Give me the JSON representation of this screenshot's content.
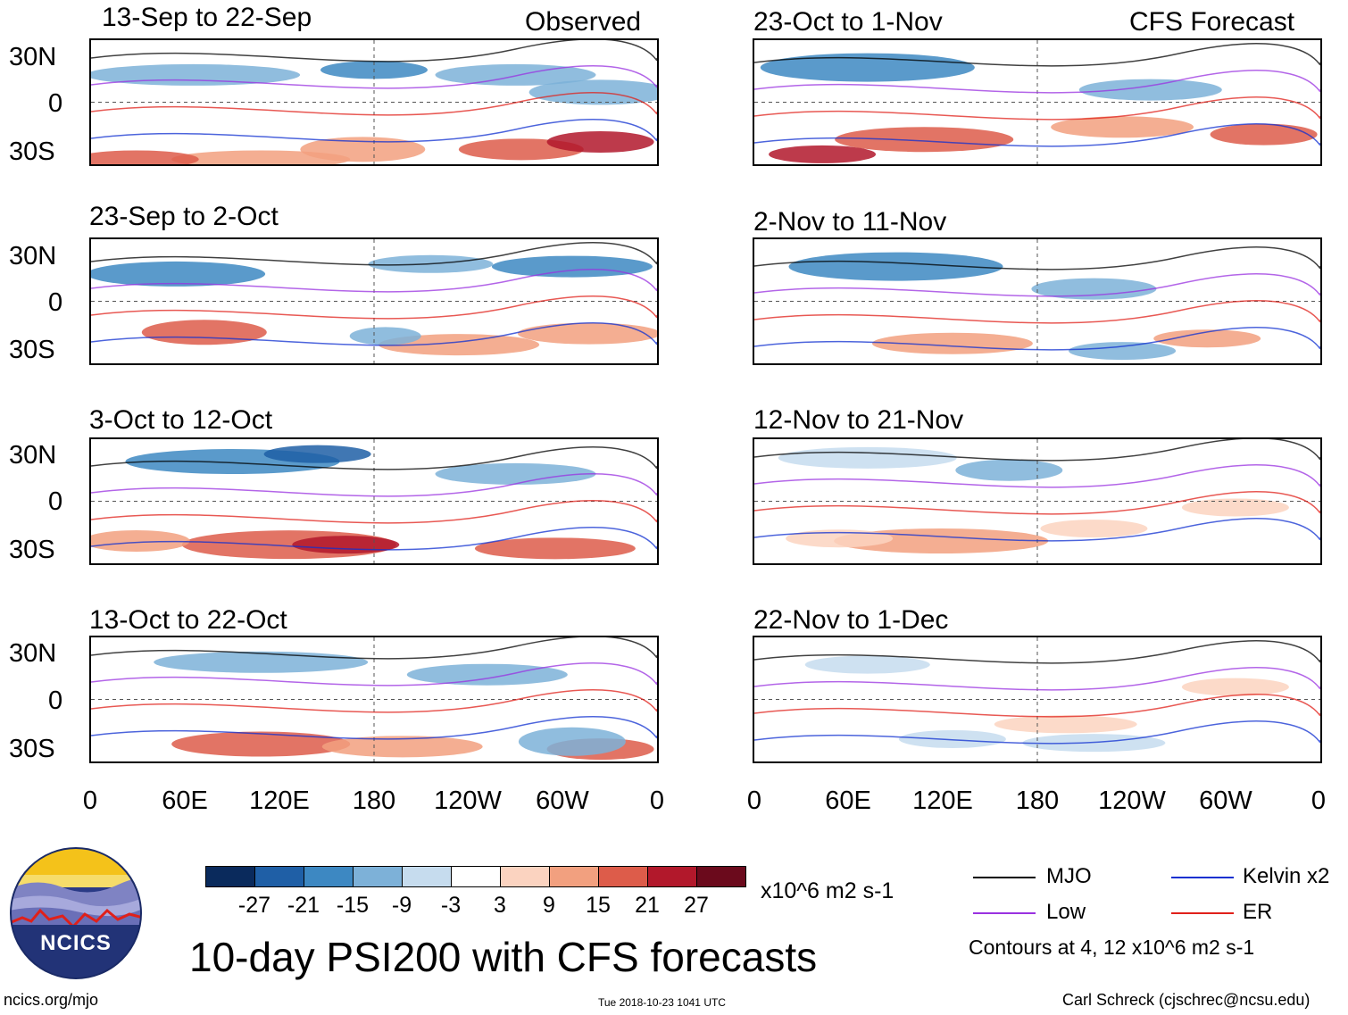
{
  "header": {
    "observed_label": "Observed",
    "forecast_label": "CFS Forecast"
  },
  "panels": [
    {
      "title": "13-Sep to 22-Sep"
    },
    {
      "title": "23-Sep to 2-Oct"
    },
    {
      "title": "3-Oct to 12-Oct"
    },
    {
      "title": "13-Oct to 22-Oct"
    },
    {
      "title": "23-Oct to 1-Nov"
    },
    {
      "title": "2-Nov to 11-Nov"
    },
    {
      "title": "12-Nov to 21-Nov"
    },
    {
      "title": "22-Nov to 1-Dec"
    }
  ],
  "lat_labels": [
    "30N",
    "0",
    "30S"
  ],
  "lon_labels": [
    "0",
    "60E",
    "120E",
    "180",
    "120W",
    "60W",
    "0"
  ],
  "colorbar": {
    "colors": [
      "#0a2a5c",
      "#1f5fa6",
      "#3d88c2",
      "#7db1d8",
      "#c6dcee",
      "#ffffff",
      "#fbd3c0",
      "#f2a07f",
      "#dd5c4a",
      "#b2182b",
      "#6b0a1c"
    ],
    "labels": [
      "-27",
      "-21",
      "-15",
      "-9",
      "-3",
      "3",
      "9",
      "15",
      "21",
      "27"
    ],
    "units": "x10^6 m2 s-1"
  },
  "title": "10-day PSI200 with CFS forecasts",
  "legend": {
    "items": [
      {
        "label": "MJO",
        "color": "#000000"
      },
      {
        "label": "Low",
        "color": "#9a31e0"
      },
      {
        "label": "Kelvin x2",
        "color": "#1030d0"
      },
      {
        "label": "ER",
        "color": "#e0201a"
      }
    ],
    "contour_note": "Contours at 4, 12 x10^6 m2 s-1"
  },
  "logo": {
    "text": "NCICS"
  },
  "footer": {
    "url": "ncics.org/mjo",
    "timestamp": "Tue 2018-10-23 1041 UTC",
    "credit": "Carl Schreck (cjschrec@ncsu.edu)"
  }
}
